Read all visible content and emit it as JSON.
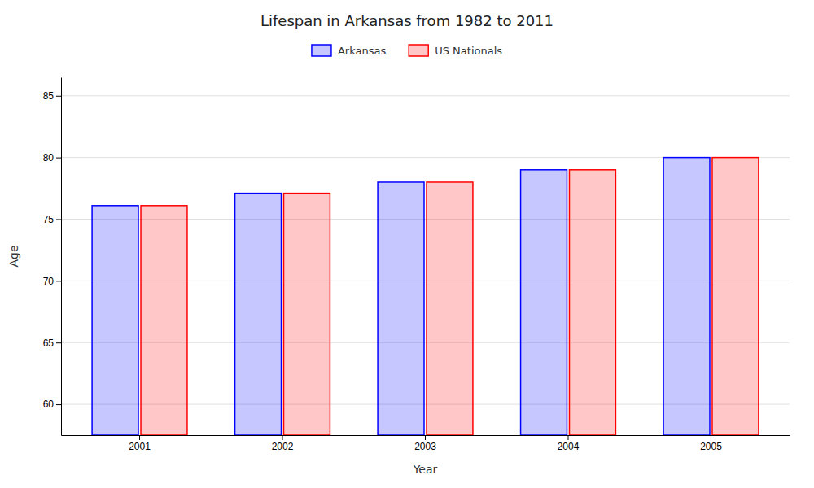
{
  "chart_data": {
    "type": "bar",
    "title": "Lifespan in Arkansas from 1982 to 2011",
    "xlabel": "Year",
    "ylabel": "Age",
    "categories": [
      "2001",
      "2002",
      "2003",
      "2004",
      "2005"
    ],
    "series": [
      {
        "name": "Arkansas",
        "color": "#0000ff",
        "values": [
          76.1,
          77.1,
          78.0,
          79.0,
          80.0
        ]
      },
      {
        "name": "US Nationals",
        "color": "#ff0000",
        "values": [
          76.1,
          77.1,
          78.0,
          79.0,
          80.0
        ]
      }
    ],
    "ylim": [
      57.5,
      86.5
    ],
    "yticks": [
      60,
      65,
      70,
      75,
      80,
      85
    ],
    "grid": true,
    "legend": "top"
  }
}
